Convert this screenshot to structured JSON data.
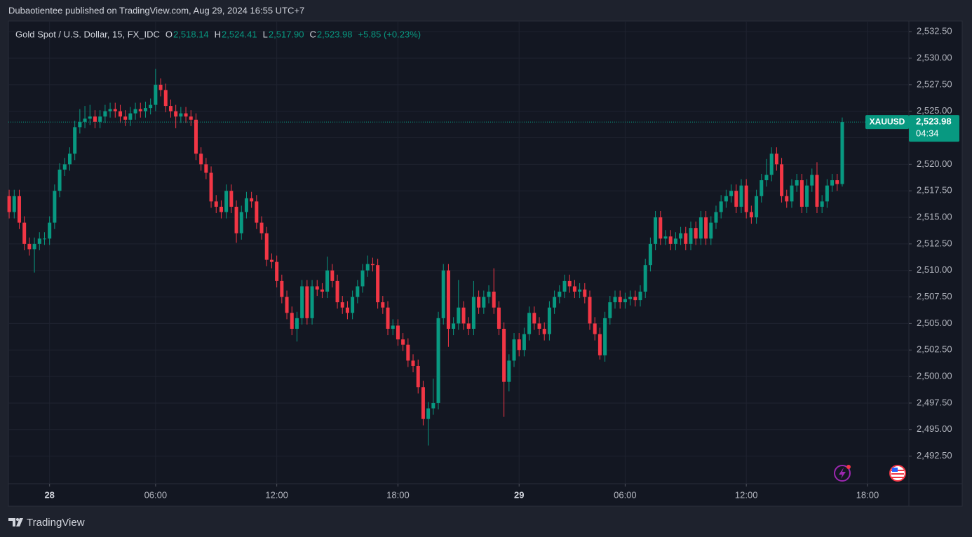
{
  "header": {
    "publisher": "Dubaotientee published on TradingView.com, Aug 29, 2024 16:55 UTC+7"
  },
  "footer": {
    "logo": "TradingView"
  },
  "chart_data": {
    "type": "candlestick",
    "title": "Gold Spot / U.S. Dollar, 15, FX_IDC",
    "legend_values": {
      "open_label": "O",
      "open": "2,518.14",
      "high_label": "H",
      "high": "2,524.41",
      "low_label": "L",
      "low": "2,517.90",
      "close_label": "C",
      "close": "2,523.98",
      "change": "+5.85 (+0.23%)"
    },
    "price_badge": {
      "symbol": "XAUUSD",
      "price": "2,523.98",
      "countdown": "04:34"
    },
    "last_price": 2523.98,
    "up_color": "#089981",
    "down_color": "#f23645",
    "grid": true,
    "xlim": [
      -0.15,
      178.2
    ],
    "xticks": [
      {
        "value": 8,
        "label": "28"
      },
      {
        "value": 29,
        "label": "06:00"
      },
      {
        "value": 53,
        "label": "12:00"
      },
      {
        "value": 77,
        "label": "18:00"
      },
      {
        "value": 101,
        "label": "29"
      },
      {
        "value": 122,
        "label": "06:00"
      },
      {
        "value": 146,
        "label": "12:00"
      },
      {
        "value": 170,
        "label": "18:00"
      }
    ],
    "ylim": [
      2489.9,
      2533.5
    ],
    "yticks": [
      {
        "value": 2492.5,
        "label": "2,492.50"
      },
      {
        "value": 2495,
        "label": "2,495.00"
      },
      {
        "value": 2497.5,
        "label": "2,497.50"
      },
      {
        "value": 2500,
        "label": "2,500.00"
      },
      {
        "value": 2502.5,
        "label": "2,502.50"
      },
      {
        "value": 2505,
        "label": "2,505.00"
      },
      {
        "value": 2507.5,
        "label": "2,507.50"
      },
      {
        "value": 2510,
        "label": "2,510.00"
      },
      {
        "value": 2512.5,
        "label": "2,512.50"
      },
      {
        "value": 2515,
        "label": "2,515.00"
      },
      {
        "value": 2517.5,
        "label": "2,517.50"
      },
      {
        "value": 2520,
        "label": "2,520.00"
      },
      {
        "value": 2522.5,
        "label": "2,522.50"
      },
      {
        "value": 2525,
        "label": "2,525.00"
      },
      {
        "value": 2527.5,
        "label": "2,527.50"
      },
      {
        "value": 2530,
        "label": "2,530.00"
      },
      {
        "value": 2532.5,
        "label": "2,532.50"
      }
    ],
    "open": [
      2517,
      2515.5,
      2517,
      2514.5,
      2512.5,
      2512,
      2512.5,
      2513,
      2513,
      2514.5,
      2517.5,
      2519.5,
      2520,
      2521,
      2523.5,
      2524,
      2524.3,
      2524.5,
      2524,
      2524.5,
      2525,
      2525.2,
      2525,
      2524.5,
      2524.2,
      2524.8,
      2525.2,
      2525,
      2525.3,
      2525.6,
      2527.5,
      2527,
      2525.5,
      2525,
      2524.5,
      2524.8,
      2524.5,
      2524.2,
      2521,
      2520,
      2519.2,
      2516.5,
      2516,
      2515.5,
      2517.5,
      2516,
      2513.5,
      2515.5,
      2516.8,
      2516.5,
      2514.5,
      2513.5,
      2511,
      2510.8,
      2509,
      2507.5,
      2506,
      2504.5,
      2505.5,
      2508.5,
      2505.5,
      2508.5,
      2508.2,
      2508,
      2510,
      2509,
      2507,
      2506.5,
      2506,
      2507.5,
      2508.5,
      2510,
      2510.6,
      2510.5,
      2507,
      2506.5,
      2504.5,
      2504.8,
      2503.5,
      2503,
      2501.5,
      2501,
      2499,
      2496,
      2497,
      2497.5,
      2505.5,
      2510,
      2504.5,
      2505,
      2506.5,
      2505,
      2504.5,
      2507.5,
      2506.5,
      2507.5,
      2508,
      2506.5,
      2504.5,
      2499.5,
      2501.5,
      2503.5,
      2502.5,
      2504,
      2506,
      2505,
      2504.5,
      2504,
      2506.5,
      2507.5,
      2508,
      2509,
      2508.5,
      2508,
      2508.2,
      2507.5,
      2505,
      2504,
      2502,
      2505.5,
      2507,
      2507.5,
      2507,
      2507.3,
      2507.5,
      2507.2,
      2508,
      2510.5,
      2512.5,
      2515,
      2513,
      2513.2,
      2512.5,
      2513,
      2513.5,
      2512.5,
      2514,
      2513,
      2515,
      2513,
      2514.5,
      2515.5,
      2516.5,
      2517,
      2517.5,
      2516,
      2518,
      2515.5,
      2515,
      2517,
      2518.5,
      2519,
      2521,
      2520,
      2517,
      2516.5,
      2518,
      2518.5,
      2516,
      2518,
      2519,
      2516,
      2516.5,
      2518,
      2518.5,
      2518.14
    ],
    "high": [
      2517.6,
      2517.6,
      2517.6,
      2515.1,
      2513.1,
      2513.1,
      2513.6,
      2513.6,
      2515.1,
      2518.1,
      2520.1,
      2520.6,
      2521.6,
      2524.1,
      2525.2,
      2525.5,
      2525.6,
      2525.1,
      2525.1,
      2525.6,
      2525.8,
      2525.8,
      2525.6,
      2525.1,
      2525.4,
      2525.8,
      2525.8,
      2525.9,
      2526.2,
      2529,
      2528.1,
      2527.6,
      2526.1,
      2525.6,
      2525.4,
      2525.4,
      2525.1,
      2524.8,
      2521.6,
      2520.6,
      2519.8,
      2517.1,
      2516.6,
      2518.1,
      2518.1,
      2516.6,
      2516.1,
      2517.4,
      2517.4,
      2517.1,
      2515.1,
      2514.1,
      2511.6,
      2511.4,
      2509.6,
      2508.1,
      2506.6,
      2506.1,
      2509.1,
      2509.1,
      2509.1,
      2509.1,
      2508.8,
      2511.3,
      2510.6,
      2509.6,
      2507.6,
      2507.1,
      2508.1,
      2509.1,
      2510.6,
      2511.4,
      2511.2,
      2511.1,
      2507.6,
      2507.1,
      2505.4,
      2505.4,
      2504.1,
      2503.6,
      2502.1,
      2501.6,
      2499.6,
      2497.6,
      2499.8,
      2506.1,
      2510.6,
      2510.6,
      2505.6,
      2509.1,
      2507.1,
      2505.6,
      2509,
      2508.1,
      2508.1,
      2508.6,
      2510.2,
      2507.1,
      2505.1,
      2502.1,
      2504.1,
      2504.1,
      2504.6,
      2506.6,
      2506.6,
      2505.6,
      2505.1,
      2507.1,
      2508.1,
      2508.6,
      2509.6,
      2509.6,
      2509.1,
      2508.8,
      2508.8,
      2508.1,
      2505.6,
      2504.6,
      2506.1,
      2507.6,
      2508.1,
      2508.1,
      2507.9,
      2508.1,
      2508.1,
      2508.6,
      2511.1,
      2513.1,
      2515.6,
      2515.6,
      2513.8,
      2513.8,
      2513.6,
      2514.1,
      2514.1,
      2514.6,
      2514.6,
      2515.6,
      2515.6,
      2515.1,
      2516.1,
      2517.1,
      2517.6,
      2518.1,
      2518.1,
      2518.6,
      2518.6,
      2516.1,
      2517.6,
      2519.1,
      2520.5,
      2521.6,
      2521.6,
      2520.6,
      2517.6,
      2518.6,
      2519.1,
      2519.1,
      2518.6,
      2519.6,
      2520.2,
      2517.1,
      2518.6,
      2519.1,
      2519.1,
      2524.41
    ],
    "low": [
      2514.9,
      2514.9,
      2513.9,
      2511.9,
      2511.4,
      2509.8,
      2511.9,
      2512.4,
      2512.4,
      2513.9,
      2516.9,
      2518.9,
      2519.4,
      2520.4,
      2522.9,
      2523.4,
      2523.7,
      2523.4,
      2523.4,
      2523.9,
      2524.4,
      2524.4,
      2523.9,
      2523.6,
      2523.6,
      2524.2,
      2524.4,
      2524.4,
      2524.7,
      2525,
      2526.4,
      2524.9,
      2524.4,
      2523.4,
      2523.9,
      2523.9,
      2523.6,
      2520.4,
      2519.4,
      2518.6,
      2515.9,
      2515.4,
      2514.9,
      2514.9,
      2515.4,
      2512.6,
      2512.9,
      2514.9,
      2515.9,
      2513.9,
      2512.9,
      2510.4,
      2510.2,
      2508.4,
      2506.9,
      2505.4,
      2503.9,
      2503.3,
      2504.9,
      2504.9,
      2504.9,
      2507.6,
      2507.4,
      2507.4,
      2508.4,
      2506.4,
      2505.9,
      2505.4,
      2505.4,
      2506.9,
      2507.9,
      2509.4,
      2509.9,
      2506.4,
      2505.9,
      2503.9,
      2503.9,
      2502.9,
      2502.4,
      2500.9,
      2500.4,
      2498.4,
      2495.4,
      2493.5,
      2496.4,
      2496.9,
      2504.9,
      2502.8,
      2503.9,
      2504.4,
      2504.4,
      2503.9,
      2503.9,
      2505.9,
      2505.9,
      2506.9,
      2505.9,
      2503.9,
      2496.2,
      2498.6,
      2500.9,
      2501.9,
      2501.9,
      2503.4,
      2504.4,
      2503.9,
      2503.4,
      2503.4,
      2505.9,
      2506.9,
      2507.4,
      2507.9,
      2507.4,
      2507.4,
      2506.9,
      2504.4,
      2503.4,
      2501.6,
      2501.4,
      2504.9,
      2506.4,
      2506.4,
      2506.4,
      2506.7,
      2506.6,
      2506.6,
      2507.4,
      2509.9,
      2511.9,
      2512.4,
      2512.4,
      2511.9,
      2511.9,
      2512.4,
      2511.9,
      2511.9,
      2512.4,
      2512.4,
      2512.4,
      2512.4,
      2513.9,
      2514.9,
      2515.9,
      2516.4,
      2515.4,
      2515.4,
      2514.9,
      2514.4,
      2514.4,
      2516.4,
      2517.9,
      2518.4,
      2519.4,
      2516.4,
      2515.9,
      2515.9,
      2517.4,
      2515.4,
      2515.4,
      2517.4,
      2515.4,
      2515.4,
      2515.9,
      2517.4,
      2517.5,
      2517.9
    ],
    "close": [
      2515.5,
      2517,
      2514.5,
      2512.5,
      2512,
      2512.5,
      2513,
      2513,
      2514.5,
      2517.5,
      2519.5,
      2520,
      2521,
      2523.5,
      2524,
      2524.3,
      2524.5,
      2524,
      2524.5,
      2525,
      2525.2,
      2525,
      2524.5,
      2524.2,
      2524.8,
      2525.2,
      2525,
      2525.3,
      2525.6,
      2527.5,
      2527,
      2525.5,
      2525,
      2524.5,
      2524.8,
      2524.5,
      2524.2,
      2521,
      2520,
      2519.2,
      2516.5,
      2516,
      2515.5,
      2517.5,
      2516,
      2513.5,
      2515.5,
      2516.8,
      2516.5,
      2514.5,
      2513.5,
      2511,
      2510.8,
      2509,
      2507.5,
      2506,
      2504.5,
      2505.5,
      2508.5,
      2505.5,
      2508.5,
      2508.2,
      2508,
      2510,
      2509,
      2507,
      2506.5,
      2506,
      2507.5,
      2508.5,
      2510,
      2510.6,
      2510.5,
      2507,
      2506.5,
      2504.5,
      2504.8,
      2503.5,
      2503,
      2501.5,
      2501,
      2499,
      2496,
      2497,
      2497.5,
      2505.5,
      2510,
      2504.5,
      2505,
      2506.5,
      2505,
      2504.5,
      2507.5,
      2506.5,
      2507.5,
      2508,
      2506.5,
      2504.5,
      2499.5,
      2501.5,
      2503.5,
      2502.5,
      2504,
      2506,
      2505,
      2504.5,
      2504,
      2506.5,
      2507.5,
      2508,
      2509,
      2508.5,
      2508,
      2508.2,
      2507.5,
      2505,
      2504,
      2502,
      2505.5,
      2507,
      2507.5,
      2507,
      2507.3,
      2507.5,
      2507.2,
      2508,
      2510.5,
      2512.5,
      2515,
      2513,
      2513.2,
      2512.5,
      2513,
      2513.5,
      2512.5,
      2514,
      2513,
      2515,
      2513,
      2514.5,
      2515.5,
      2516.5,
      2517,
      2517.5,
      2516,
      2518,
      2515.5,
      2515,
      2517,
      2518.5,
      2519,
      2521,
      2520,
      2517,
      2516.5,
      2518,
      2518.5,
      2516,
      2518,
      2519,
      2516,
      2516.5,
      2518,
      2518.5,
      2518.14,
      2523.98
    ]
  }
}
